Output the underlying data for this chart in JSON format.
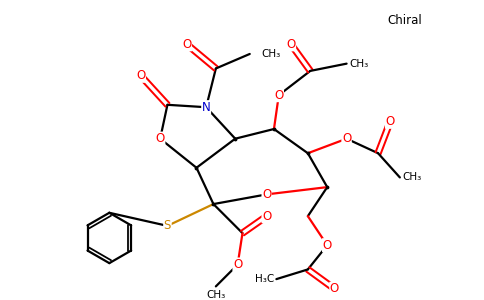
{
  "background_color": "#ffffff",
  "atom_colors": {
    "O": "#ff0000",
    "N": "#0000cc",
    "S": "#cc8800",
    "C": "#000000"
  },
  "bond_color": "#000000",
  "bond_lw": 1.6,
  "figsize": [
    4.84,
    3.0
  ],
  "dpi": 100,
  "xlim": [
    0,
    9.68
  ],
  "ylim": [
    0,
    6.0
  ]
}
